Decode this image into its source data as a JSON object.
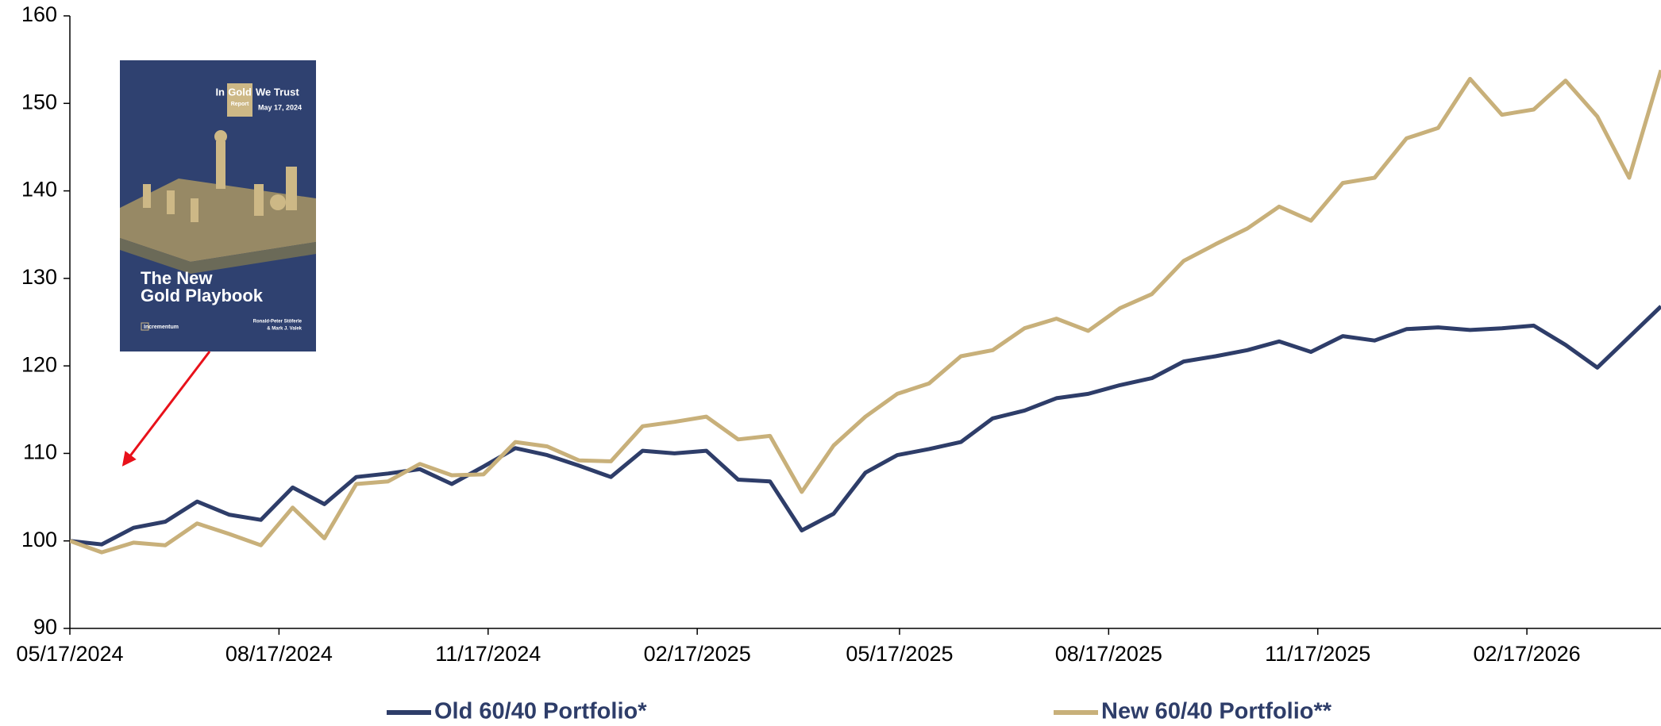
{
  "chart_data": {
    "type": "line",
    "x": [
      "05/17/2024",
      "05/31/2024",
      "06/14/2024",
      "06/28/2024",
      "07/12/2024",
      "07/26/2024",
      "08/09/2024",
      "08/23/2024",
      "09/06/2024",
      "09/20/2024",
      "10/04/2024",
      "10/18/2024",
      "11/01/2024",
      "11/15/2024",
      "11/29/2024",
      "12/13/2024",
      "12/27/2024",
      "01/10/2025",
      "01/24/2025",
      "02/07/2025",
      "02/21/2025",
      "03/07/2025",
      "03/21/2025",
      "04/04/2025",
      "04/18/2025",
      "05/02/2025",
      "05/16/2025",
      "05/30/2025",
      "06/13/2025",
      "06/27/2025",
      "07/11/2025",
      "07/25/2025",
      "08/08/2025",
      "08/22/2025",
      "09/05/2025",
      "09/19/2025",
      "10/03/2025",
      "10/17/2025",
      "10/31/2025",
      "11/14/2025",
      "11/28/2025",
      "12/12/2025",
      "12/26/2025",
      "01/09/2026",
      "01/23/2026",
      "02/06/2026",
      "02/20/2026",
      "03/06/2026",
      "03/20/2026",
      "04/03/2026",
      "04/17/2026"
    ],
    "series": [
      {
        "name": "Old 60/40 Portfolio*",
        "color": "#2e3d69",
        "values": [
          100,
          99.6,
          101.5,
          102.2,
          104.5,
          103,
          102.4,
          106.1,
          104.2,
          107.3,
          107.7,
          108.2,
          106.5,
          108.5,
          110.6,
          109.8,
          108.6,
          107.3,
          110.3,
          110,
          110.3,
          107,
          106.8,
          101.2,
          103.1,
          107.8,
          109.8,
          110.5,
          111.3,
          114,
          114.9,
          116.3,
          116.8,
          117.8,
          118.6,
          120.5,
          121.1,
          121.8,
          122.8,
          121.6,
          123.4,
          122.9,
          124.2,
          124.4,
          124.1,
          124.3,
          124.6,
          122.4,
          119.8,
          123.3,
          126.8
        ]
      },
      {
        "name": "New 60/40 Portfolio**",
        "color": "#c8b07a",
        "values": [
          100,
          98.7,
          99.8,
          99.5,
          102,
          100.8,
          99.5,
          103.8,
          100.3,
          106.5,
          106.8,
          108.8,
          107.5,
          107.6,
          111.3,
          110.8,
          109.2,
          109.1,
          113.1,
          113.6,
          114.2,
          111.6,
          112,
          105.6,
          110.9,
          114.2,
          116.8,
          118,
          121.1,
          121.8,
          124.3,
          125.4,
          124,
          126.6,
          128.2,
          132,
          133.9,
          135.7,
          138.2,
          136.6,
          140.9,
          141.5,
          146,
          147.2,
          152.8,
          148.7,
          149.3,
          152.6,
          148.5,
          141.5,
          153.8
        ]
      }
    ],
    "xlim": [
      "05/17/2024",
      "04/17/2026"
    ],
    "xticks": [
      "05/17/2024",
      "08/17/2024",
      "11/17/2024",
      "02/17/2025",
      "05/17/2025",
      "08/17/2025",
      "11/17/2025",
      "02/17/2026"
    ],
    "ylim": [
      90,
      160
    ],
    "yticks": [
      90,
      100,
      110,
      120,
      130,
      140,
      150,
      160
    ],
    "grid": false,
    "inset": {
      "report_in": "In",
      "report_gold": "Gold",
      "report_trust": "We Trust",
      "report_label": "Report",
      "date": "May 17, 2024",
      "title_line1": "The New",
      "title_line2": "Gold Playbook",
      "publisher": "Incrementum",
      "authors_line1": "Ronald-Peter Stöferle",
      "authors_line2": "& Mark J. Valek"
    }
  }
}
